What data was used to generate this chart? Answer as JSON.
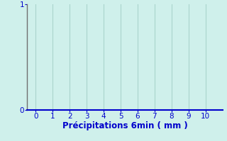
{
  "title": "",
  "xlabel": "Précipitations 6min ( mm )",
  "ylabel": "",
  "xlim": [
    -0.5,
    11
  ],
  "ylim": [
    0,
    1
  ],
  "xticks": [
    0,
    1,
    2,
    3,
    4,
    5,
    6,
    7,
    8,
    9,
    10
  ],
  "yticks": [
    0,
    1
  ],
  "background_color": "#cff0eb",
  "plot_bg_color": "#cff0eb",
  "grid_color": "#aad4cc",
  "axis_color_bottom": "#0000cc",
  "axis_color_left": "#707070",
  "tick_color": "#0000cc",
  "label_color": "#0000cc",
  "xlabel_fontsize": 8.5,
  "tick_fontsize": 7.5
}
